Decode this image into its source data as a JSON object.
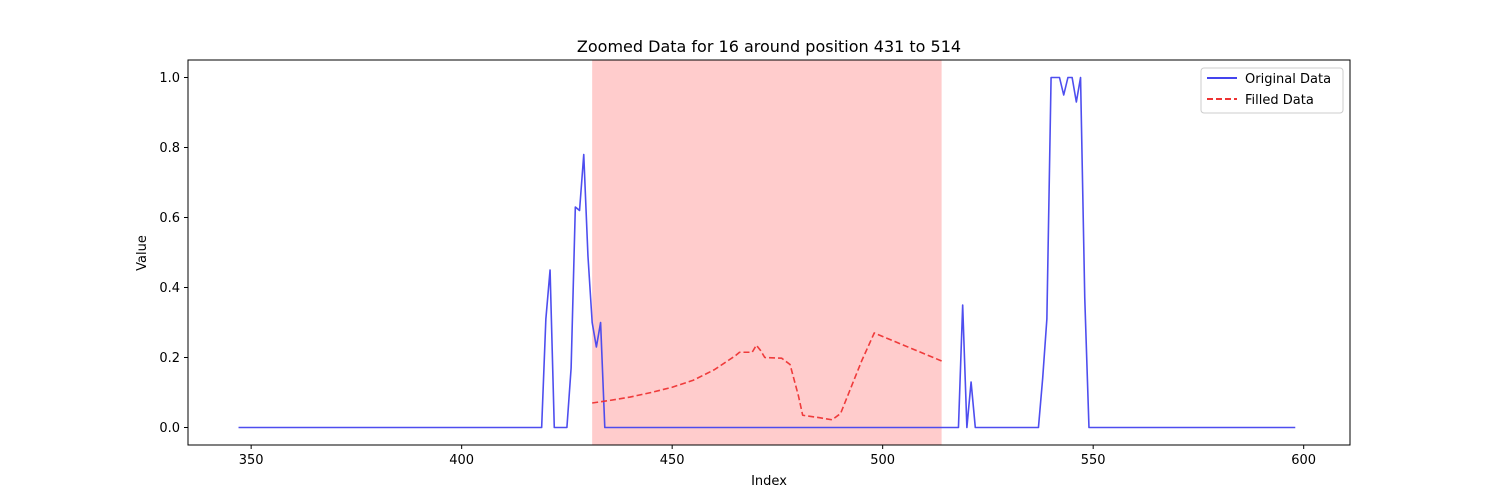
{
  "chart_data": {
    "type": "line",
    "title": "Zoomed Data for 16 around position 431 to 514",
    "xlabel": "Index",
    "ylabel": "Value",
    "xlim": [
      335,
      611
    ],
    "ylim": [
      -0.05,
      1.05
    ],
    "xticks": [
      350,
      400,
      450,
      500,
      550,
      600
    ],
    "yticks": [
      0.0,
      0.2,
      0.4,
      0.6,
      0.8,
      1.0
    ],
    "ytick_labels": [
      "0.0",
      "0.2",
      "0.4",
      "0.6",
      "0.8",
      "1.0"
    ],
    "grid": false,
    "legend_position": "top-right",
    "highlight_span": {
      "x": [
        431,
        514
      ],
      "color": "#ff9999"
    },
    "series": [
      {
        "name": "Original Data",
        "style": "solid",
        "color": "#4444ee",
        "x": [
          347,
          419,
          420,
          421,
          422,
          423,
          424,
          425,
          426,
          427,
          428,
          429,
          430,
          431,
          432,
          433,
          434,
          435,
          518,
          519,
          520,
          521,
          522,
          523,
          537,
          538,
          539,
          540,
          541,
          542,
          543,
          544,
          545,
          546,
          547,
          548,
          549,
          598
        ],
        "y": [
          0.0,
          0.0,
          0.31,
          0.45,
          0.0,
          0.0,
          0.0,
          0.0,
          0.17,
          0.63,
          0.62,
          0.78,
          0.49,
          0.3,
          0.23,
          0.3,
          0.0,
          0.0,
          0.0,
          0.35,
          0.0,
          0.13,
          0.0,
          0.0,
          0.0,
          0.14,
          0.31,
          1.0,
          1.0,
          1.0,
          0.95,
          1.0,
          1.0,
          0.93,
          1.0,
          0.37,
          0.0,
          0.0
        ]
      },
      {
        "name": "Filled Data",
        "style": "dashed",
        "color": "#ee3333",
        "x": [
          431,
          435,
          440,
          445,
          450,
          455,
          460,
          465,
          466,
          469,
          470,
          471,
          472,
          476,
          478,
          480,
          481,
          485,
          488,
          490,
          492,
          495,
          498,
          500,
          505,
          510,
          514
        ],
        "y": [
          0.07,
          0.077,
          0.087,
          0.1,
          0.115,
          0.135,
          0.165,
          0.205,
          0.215,
          0.215,
          0.235,
          0.22,
          0.2,
          0.198,
          0.18,
          0.09,
          0.035,
          0.028,
          0.022,
          0.04,
          0.1,
          0.19,
          0.27,
          0.26,
          0.235,
          0.21,
          0.19
        ]
      }
    ]
  }
}
